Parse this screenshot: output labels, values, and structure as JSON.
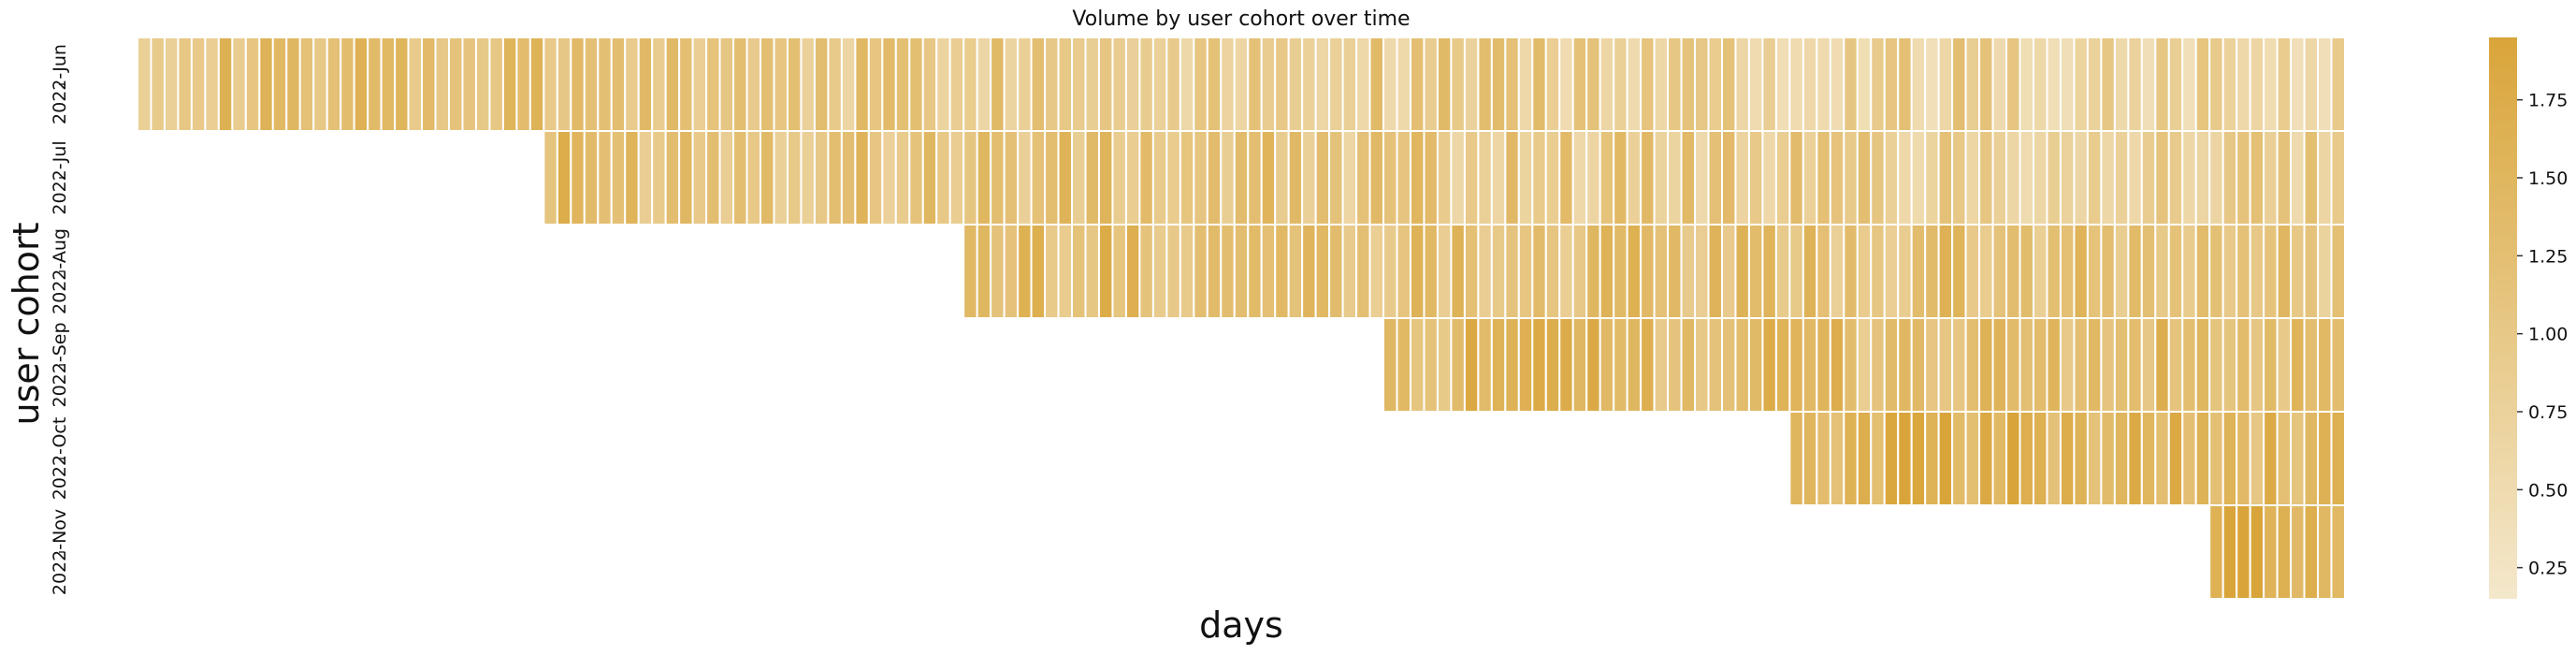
{
  "chart_data": {
    "type": "heatmap",
    "title": "Volume by user cohort over time",
    "xlabel": "days",
    "ylabel": "user cohort",
    "rows": [
      "2022-Jun",
      "2022-Jul",
      "2022-Aug",
      "2022-Sep",
      "2022-Oct",
      "2022-Nov"
    ],
    "n_columns": 163,
    "row_start_day": [
      0,
      30,
      61,
      92,
      122,
      153
    ],
    "row_mean_value": [
      1.25,
      1.3,
      1.35,
      1.45,
      1.65,
      1.85
    ],
    "colorbar": {
      "ticks": [
        0.25,
        0.5,
        0.75,
        1.0,
        1.25,
        1.5,
        1.75
      ],
      "tick_labels": [
        "0.25",
        "0.50",
        "0.75",
        "1.00",
        "1.25",
        "1.50",
        "1.75"
      ],
      "range": [
        0.15,
        1.95
      ]
    },
    "color_low": "#f4e8cc",
    "color_high": "#d9a53a",
    "grid": false,
    "cell_border_color": "#ffffff"
  }
}
